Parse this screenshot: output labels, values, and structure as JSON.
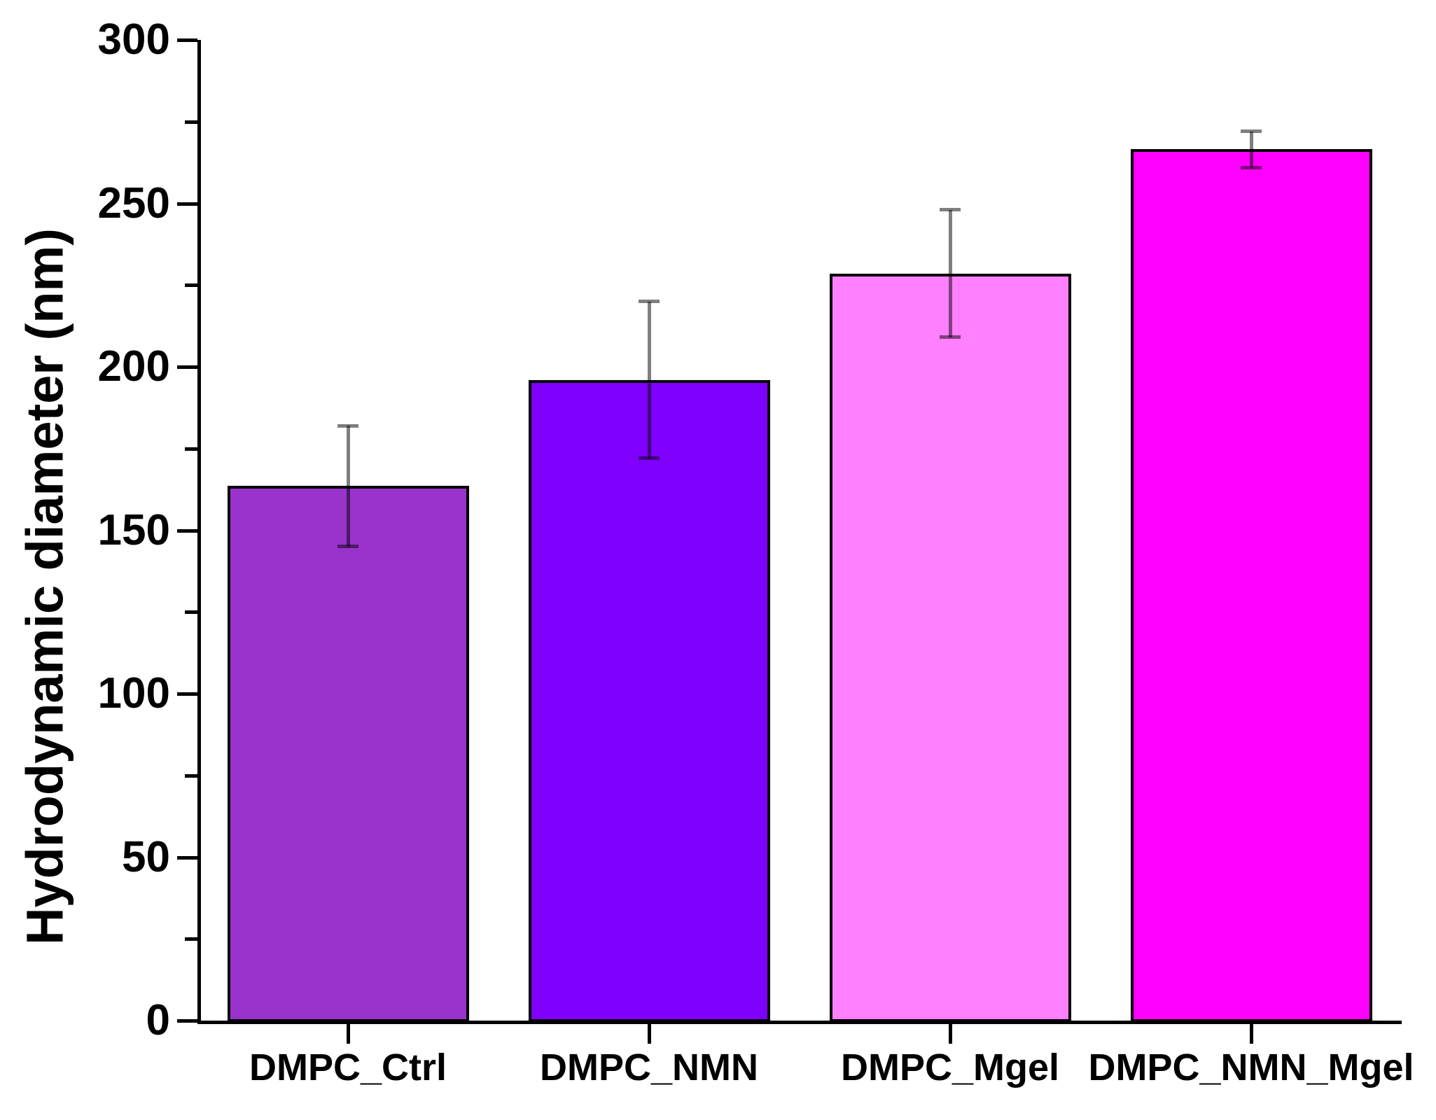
{
  "chart_data": {
    "type": "bar",
    "title": "",
    "categories": [
      "DMPC_Ctrl",
      "DMPC_NMN",
      "DMPC_Mgel",
      "DMPC_NMN_Mgel"
    ],
    "values": [
      163.5,
      196,
      228.5,
      266.5
    ],
    "errors": [
      18.5,
      24,
      19.5,
      5.5
    ],
    "bar_colors": [
      "#9933CC",
      "#7F00FF",
      "#FF80FF",
      "#FF00FF"
    ],
    "bar_border_color": "#000000",
    "error_bar_color": "rgba(0,0,0,0.5)",
    "axis_color": "#000000",
    "xlabel": "",
    "ylabel": "Hydrodynamic diameter (nm)",
    "ylim": [
      0,
      300
    ],
    "y_major_ticks": [
      0,
      50,
      100,
      150,
      200,
      250,
      300
    ],
    "y_minor_ticks": [
      25,
      75,
      125,
      175,
      225,
      275
    ],
    "grid": false,
    "legend": false
  }
}
